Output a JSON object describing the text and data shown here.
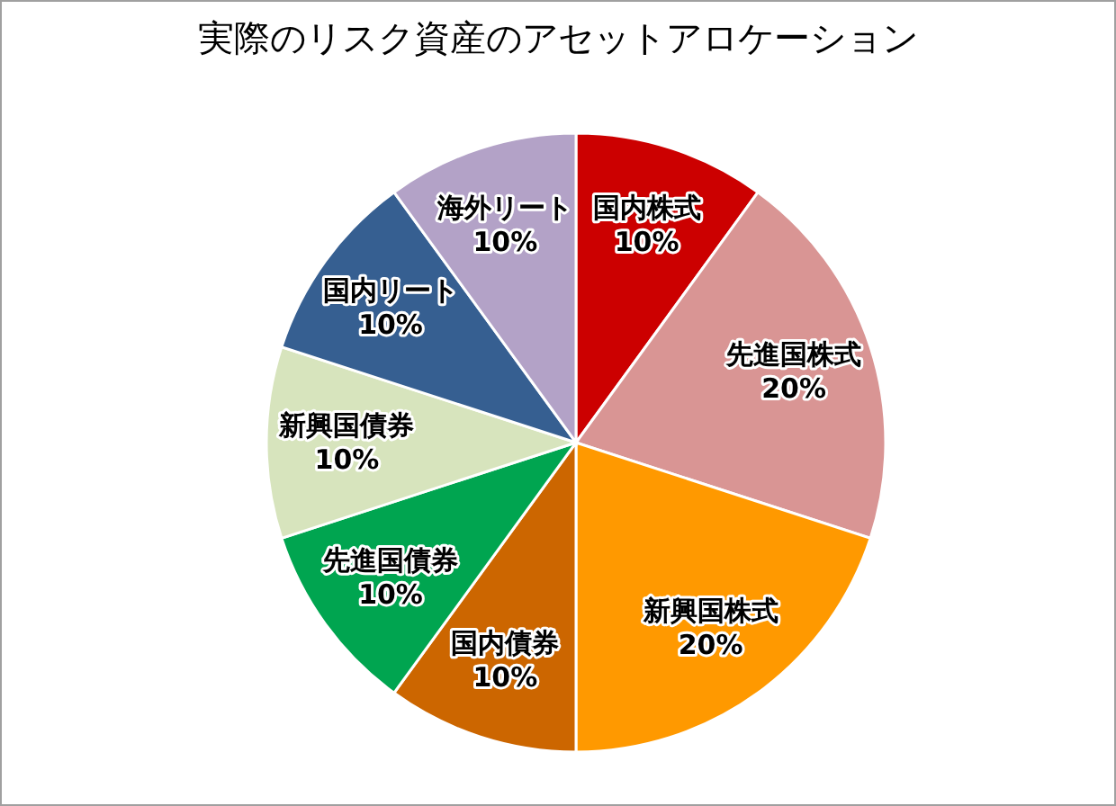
{
  "chart_data": {
    "type": "pie",
    "title": "実際のリスク資産のアセットアロケーション",
    "categories": [
      "国内株式",
      "先進国株式",
      "新興国株式",
      "国内債券",
      "先進国債券",
      "新興国債券",
      "国内リート",
      "海外リート"
    ],
    "values": [
      10,
      20,
      20,
      10,
      10,
      10,
      10,
      10
    ],
    "colors": [
      "#cc0000",
      "#d99594",
      "#ff9900",
      "#cc6600",
      "#00a550",
      "#d7e4bd",
      "#365f91",
      "#b3a2c7"
    ],
    "value_labels": [
      "10%",
      "20%",
      "20%",
      "10%",
      "10%",
      "10%",
      "10%",
      "10%"
    ]
  }
}
